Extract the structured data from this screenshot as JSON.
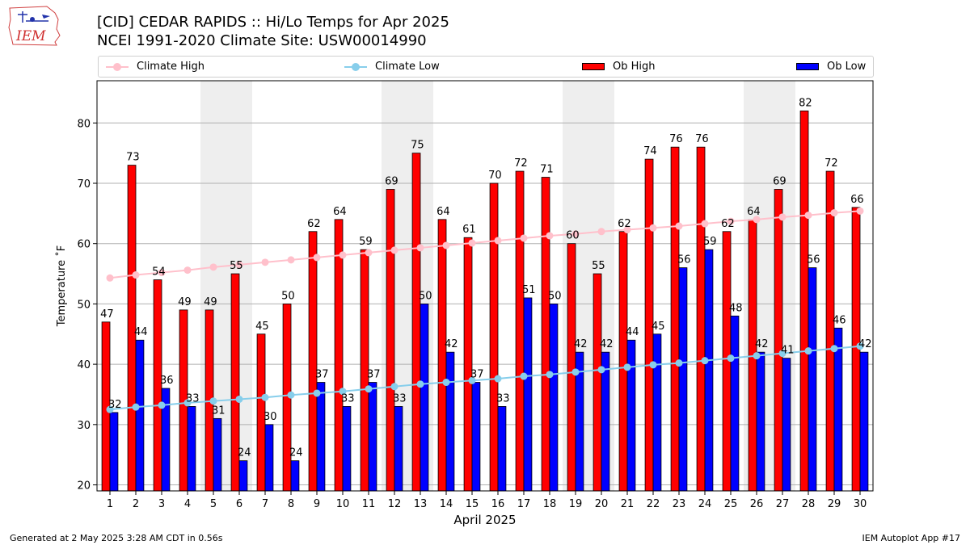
{
  "header": {
    "logo_text": "IEM",
    "title": "[CID] CEDAR RAPIDS :: Hi/Lo Temps for Apr 2025",
    "subtitle": "NCEI 1991-2020 Climate Site: USW00014990"
  },
  "footer": {
    "generated": "Generated at 2 May 2025 3:28 AM CDT in 0.56s",
    "app": "IEM Autoplot App #17"
  },
  "colors": {
    "ob_high": "#ff0000",
    "ob_low": "#0000ff",
    "climate_high": "#ffc0cb",
    "climate_low": "#87ceeb",
    "weekend_shade": "#eeeeee"
  },
  "chart_data": {
    "type": "bar",
    "xlabel": "April 2025",
    "ylabel": "Temperature ˚F",
    "ylim": [
      19,
      87
    ],
    "yticks": [
      20,
      30,
      40,
      50,
      60,
      70,
      80
    ],
    "grid": "horizontal",
    "legend_position": "top",
    "categories": [
      1,
      2,
      3,
      4,
      5,
      6,
      7,
      8,
      9,
      10,
      11,
      12,
      13,
      14,
      15,
      16,
      17,
      18,
      19,
      20,
      21,
      22,
      23,
      24,
      25,
      26,
      27,
      28,
      29,
      30
    ],
    "shaded_days": [
      [
        5,
        6
      ],
      [
        12,
        13
      ],
      [
        19,
        20
      ],
      [
        26,
        27
      ]
    ],
    "series": [
      {
        "name": "Ob High",
        "kind": "bar",
        "values": [
          47,
          73,
          54,
          49,
          49,
          55,
          45,
          50,
          62,
          64,
          59,
          69,
          75,
          64,
          61,
          70,
          72,
          71,
          60,
          55,
          62,
          74,
          76,
          76,
          62,
          64,
          69,
          82,
          72,
          66
        ]
      },
      {
        "name": "Ob Low",
        "kind": "bar",
        "values": [
          32,
          44,
          36,
          33,
          31,
          24,
          30,
          24,
          37,
          33,
          37,
          33,
          50,
          42,
          37,
          33,
          51,
          50,
          42,
          42,
          44,
          45,
          56,
          59,
          48,
          42,
          41,
          56,
          46,
          42
        ]
      },
      {
        "name": "Climate High",
        "kind": "line",
        "values": [
          54.3,
          54.8,
          55.2,
          55.6,
          56.1,
          56.5,
          56.9,
          57.3,
          57.7,
          58.1,
          58.5,
          58.9,
          59.3,
          59.7,
          60.1,
          60.5,
          60.9,
          61.3,
          61.6,
          62.0,
          62.3,
          62.6,
          62.9,
          63.3,
          63.7,
          64.0,
          64.4,
          64.7,
          65.1,
          65.4
        ]
      },
      {
        "name": "Climate Low",
        "kind": "line",
        "values": [
          32.5,
          32.9,
          33.2,
          33.6,
          33.9,
          34.2,
          34.5,
          34.9,
          35.2,
          35.5,
          35.9,
          36.3,
          36.7,
          37.0,
          37.3,
          37.6,
          38.0,
          38.3,
          38.7,
          39.1,
          39.5,
          39.9,
          40.2,
          40.6,
          41.0,
          41.4,
          41.8,
          42.2,
          42.6,
          43.0
        ]
      }
    ]
  }
}
